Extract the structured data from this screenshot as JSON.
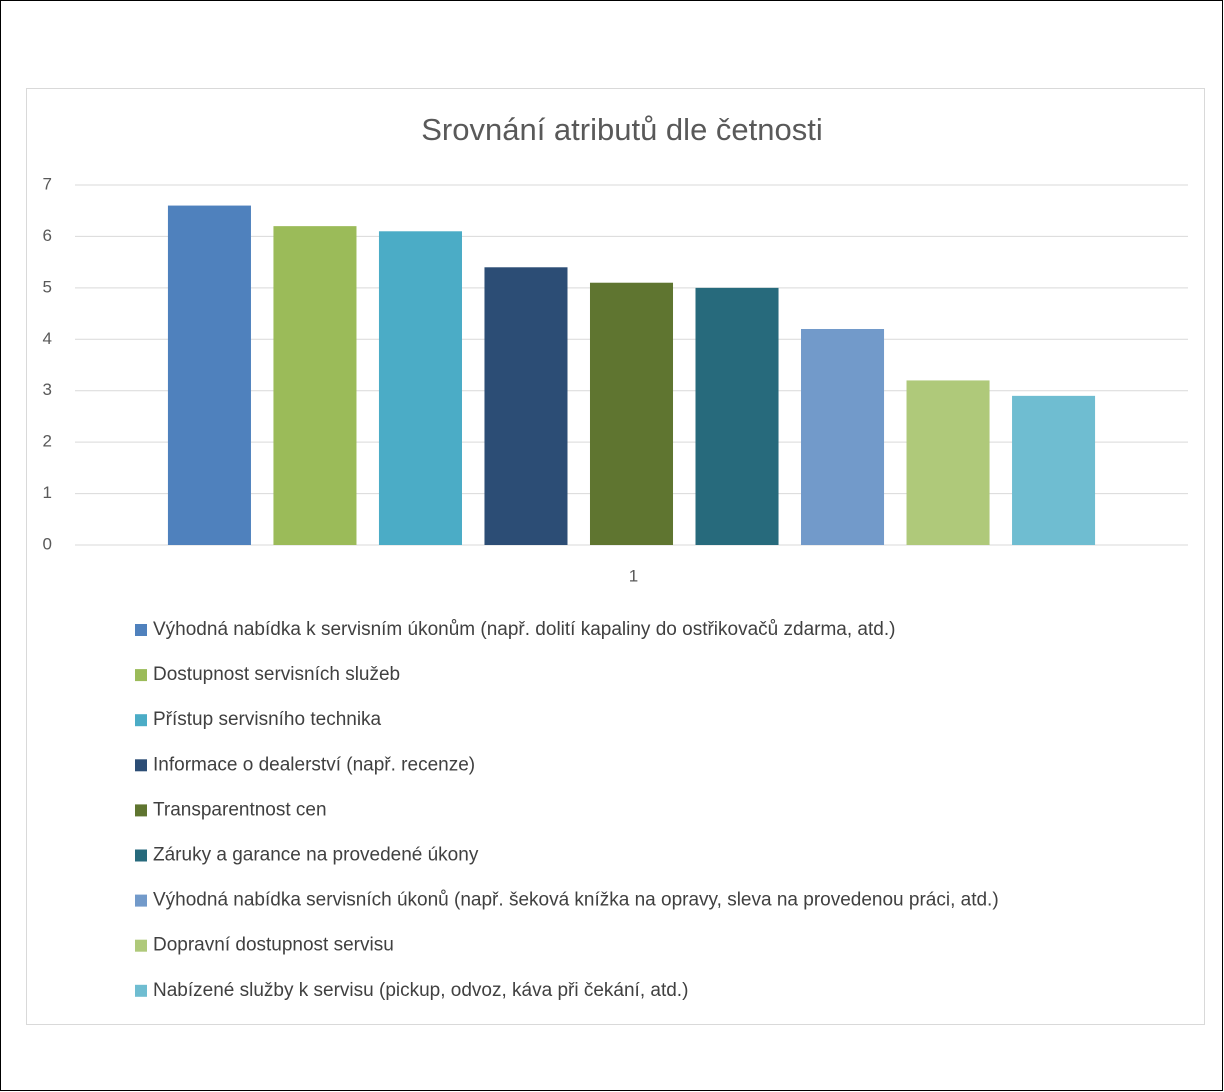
{
  "chart_data": {
    "type": "bar",
    "title": "Srovnání atributů dle četnosti",
    "categories": [
      "1"
    ],
    "series": [
      {
        "name": "Výhodná nabídka k servisním úkonům (např. dolití kapaliny do ostřikovačů zdarma, atd.)",
        "color": "#4f81bd",
        "values": [
          6.6
        ]
      },
      {
        "name": "Dostupnost servisních služeb",
        "color": "#9bbb59",
        "values": [
          6.2
        ]
      },
      {
        "name": "Přístup servisního technika",
        "color": "#4bacc6",
        "values": [
          6.1
        ]
      },
      {
        "name": "Informace o dealerství (např. recenze)",
        "color": "#2c4d75",
        "values": [
          5.4
        ]
      },
      {
        "name": "Transparentnost cen",
        "color": "#5f7530",
        "values": [
          5.1
        ]
      },
      {
        "name": "Záruky a garance na provedené úkony",
        "color": "#276a7c",
        "values": [
          5.0
        ]
      },
      {
        "name": "Výhodná nabídka servisních úkonů (např. šeková knížka na opravy, sleva na provedenou práci, atd.)",
        "color": "#729aca",
        "values": [
          4.2
        ]
      },
      {
        "name": "Dopravní dostupnost servisu",
        "color": "#afc97a",
        "values": [
          3.2
        ]
      },
      {
        "name": "Nabízené služby k servisu (pickup, odvoz, káva při čekání, atd.)",
        "color": "#6fbdd1",
        "values": [
          2.9
        ]
      }
    ],
    "ylim": [
      0,
      7
    ],
    "yticks": [
      0,
      1,
      2,
      3,
      4,
      5,
      6,
      7
    ],
    "grid": true,
    "legend": "bottom"
  }
}
